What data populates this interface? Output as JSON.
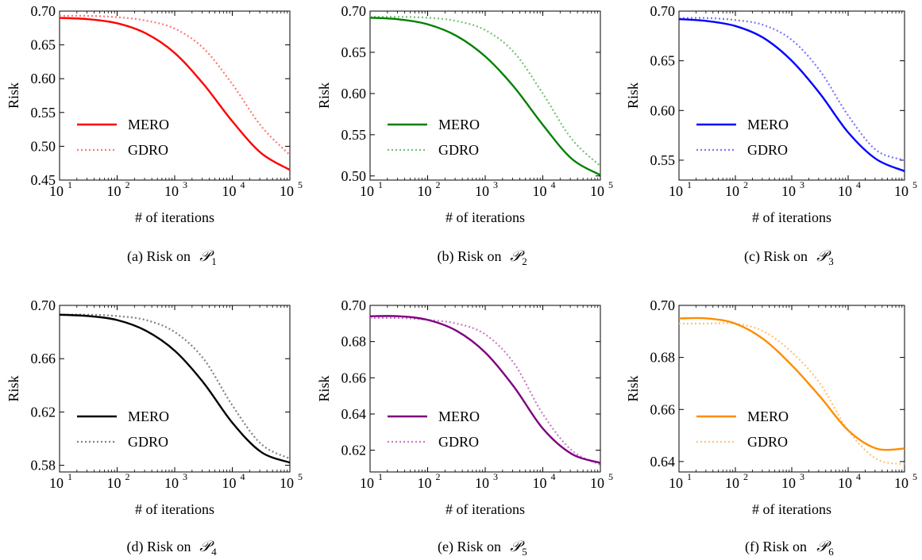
{
  "figure": {
    "caption_sub_labels": [
      "1",
      "2",
      "3",
      "4",
      "5",
      "6"
    ]
  },
  "chart_data": [
    {
      "type": "line",
      "caption": "(a) Risk on ",
      "xlabel": "# of iterations",
      "ylabel": "Risk",
      "xscale": "log",
      "xlim": [
        10,
        100000
      ],
      "ylim": [
        0.45,
        0.7
      ],
      "yticks": [
        "0.45",
        "0.50",
        "0.55",
        "0.60",
        "0.65",
        "0.70"
      ],
      "legend_position": "lower-left",
      "series": [
        {
          "name": "MERO",
          "color": "#ff0000",
          "style": "solid",
          "x": [
            10,
            31.6,
            100,
            316,
            1000,
            3162,
            10000,
            31623,
            100000
          ],
          "y": [
            0.69,
            0.688,
            0.682,
            0.667,
            0.638,
            0.592,
            0.537,
            0.49,
            0.465
          ]
        },
        {
          "name": "GDRO",
          "color": "#ff7777",
          "style": "dotted",
          "x": [
            10,
            31.6,
            100,
            316,
            1000,
            3162,
            10000,
            31623,
            100000
          ],
          "y": [
            0.693,
            0.693,
            0.691,
            0.686,
            0.674,
            0.645,
            0.592,
            0.53,
            0.487
          ]
        }
      ]
    },
    {
      "type": "line",
      "caption": "(b) Risk on ",
      "xlabel": "# of iterations",
      "ylabel": "Risk",
      "xscale": "log",
      "xlim": [
        10,
        100000
      ],
      "ylim": [
        0.495,
        0.7
      ],
      "yticks": [
        "0.50",
        "0.55",
        "0.60",
        "0.65",
        "0.70"
      ],
      "legend_position": "lower-left",
      "series": [
        {
          "name": "MERO",
          "color": "#008000",
          "style": "solid",
          "x": [
            10,
            31.6,
            100,
            316,
            1000,
            3162,
            10000,
            31623,
            100000
          ],
          "y": [
            0.692,
            0.69,
            0.684,
            0.67,
            0.645,
            0.608,
            0.562,
            0.521,
            0.501
          ]
        },
        {
          "name": "GDRO",
          "color": "#77c077",
          "style": "dotted",
          "x": [
            10,
            31.6,
            100,
            316,
            1000,
            3162,
            10000,
            31623,
            100000
          ],
          "y": [
            0.693,
            0.693,
            0.692,
            0.688,
            0.677,
            0.65,
            0.6,
            0.545,
            0.512
          ]
        }
      ]
    },
    {
      "type": "line",
      "caption": "(c) Risk on ",
      "xlabel": "# of iterations",
      "ylabel": "Risk",
      "xscale": "log",
      "xlim": [
        10,
        100000
      ],
      "ylim": [
        0.53,
        0.7
      ],
      "yticks": [
        "0.55",
        "0.60",
        "0.65",
        "0.70"
      ],
      "legend_position": "lower-left",
      "series": [
        {
          "name": "MERO",
          "color": "#0000ff",
          "style": "solid",
          "x": [
            10,
            31.6,
            100,
            316,
            1000,
            3162,
            10000,
            31623,
            100000
          ],
          "y": [
            0.692,
            0.69,
            0.685,
            0.673,
            0.65,
            0.617,
            0.578,
            0.551,
            0.539
          ]
        },
        {
          "name": "GDRO",
          "color": "#7777ff",
          "style": "dotted",
          "x": [
            10,
            31.6,
            100,
            316,
            1000,
            3162,
            10000,
            31623,
            100000
          ],
          "y": [
            0.693,
            0.693,
            0.691,
            0.686,
            0.671,
            0.64,
            0.595,
            0.56,
            0.55
          ]
        }
      ]
    },
    {
      "type": "line",
      "caption": "(d) Risk on ",
      "xlabel": "# of iterations",
      "ylabel": "Risk",
      "xscale": "log",
      "xlim": [
        10,
        100000
      ],
      "ylim": [
        0.575,
        0.7
      ],
      "yticks": [
        "0.58",
        "0.62",
        "0.66",
        "0.70"
      ],
      "legend_position": "lower-left",
      "series": [
        {
          "name": "MERO",
          "color": "#000000",
          "style": "solid",
          "x": [
            10,
            31.6,
            100,
            316,
            1000,
            3162,
            10000,
            31623,
            100000
          ],
          "y": [
            0.693,
            0.692,
            0.689,
            0.681,
            0.666,
            0.642,
            0.612,
            0.59,
            0.582
          ]
        },
        {
          "name": "GDRO",
          "color": "#808080",
          "style": "dotted",
          "x": [
            10,
            31.6,
            100,
            316,
            1000,
            3162,
            10000,
            31623,
            100000
          ],
          "y": [
            0.693,
            0.693,
            0.692,
            0.689,
            0.68,
            0.66,
            0.625,
            0.596,
            0.585
          ]
        }
      ]
    },
    {
      "type": "line",
      "caption": "(e) Risk on ",
      "xlabel": "# of iterations",
      "ylabel": "Risk",
      "xscale": "log",
      "xlim": [
        10,
        100000
      ],
      "ylim": [
        0.608,
        0.7
      ],
      "yticks": [
        "0.62",
        "0.64",
        "0.66",
        "0.68",
        "0.70"
      ],
      "legend_position": "lower-left",
      "series": [
        {
          "name": "MERO",
          "color": "#800080",
          "style": "solid",
          "x": [
            10,
            31.6,
            100,
            316,
            1000,
            3162,
            10000,
            31623,
            100000
          ],
          "y": [
            0.694,
            0.694,
            0.692,
            0.686,
            0.674,
            0.655,
            0.632,
            0.618,
            0.613
          ]
        },
        {
          "name": "GDRO",
          "color": "#c77dc7",
          "style": "dotted",
          "x": [
            10,
            31.6,
            100,
            316,
            1000,
            3162,
            10000,
            31623,
            100000
          ],
          "y": [
            0.693,
            0.693,
            0.692,
            0.69,
            0.684,
            0.668,
            0.64,
            0.62,
            0.612
          ]
        }
      ]
    },
    {
      "type": "line",
      "caption": "(f) Risk on ",
      "xlabel": "# of iterations",
      "ylabel": "Risk",
      "xscale": "log",
      "xlim": [
        10,
        100000
      ],
      "ylim": [
        0.636,
        0.7
      ],
      "yticks": [
        "0.64",
        "0.66",
        "0.68",
        "0.70"
      ],
      "legend_position": "lower-left",
      "series": [
        {
          "name": "MERO",
          "color": "#ff8c00",
          "style": "solid",
          "x": [
            10,
            31.6,
            100,
            316,
            1000,
            3162,
            10000,
            31623,
            100000
          ],
          "y": [
            0.695,
            0.695,
            0.693,
            0.687,
            0.677,
            0.665,
            0.652,
            0.645,
            0.645
          ]
        },
        {
          "name": "GDRO",
          "color": "#ffc277",
          "style": "dotted",
          "x": [
            10,
            31.6,
            100,
            316,
            1000,
            3162,
            10000,
            31623,
            100000
          ],
          "y": [
            0.693,
            0.693,
            0.693,
            0.69,
            0.682,
            0.67,
            0.652,
            0.641,
            0.639
          ]
        }
      ]
    }
  ]
}
